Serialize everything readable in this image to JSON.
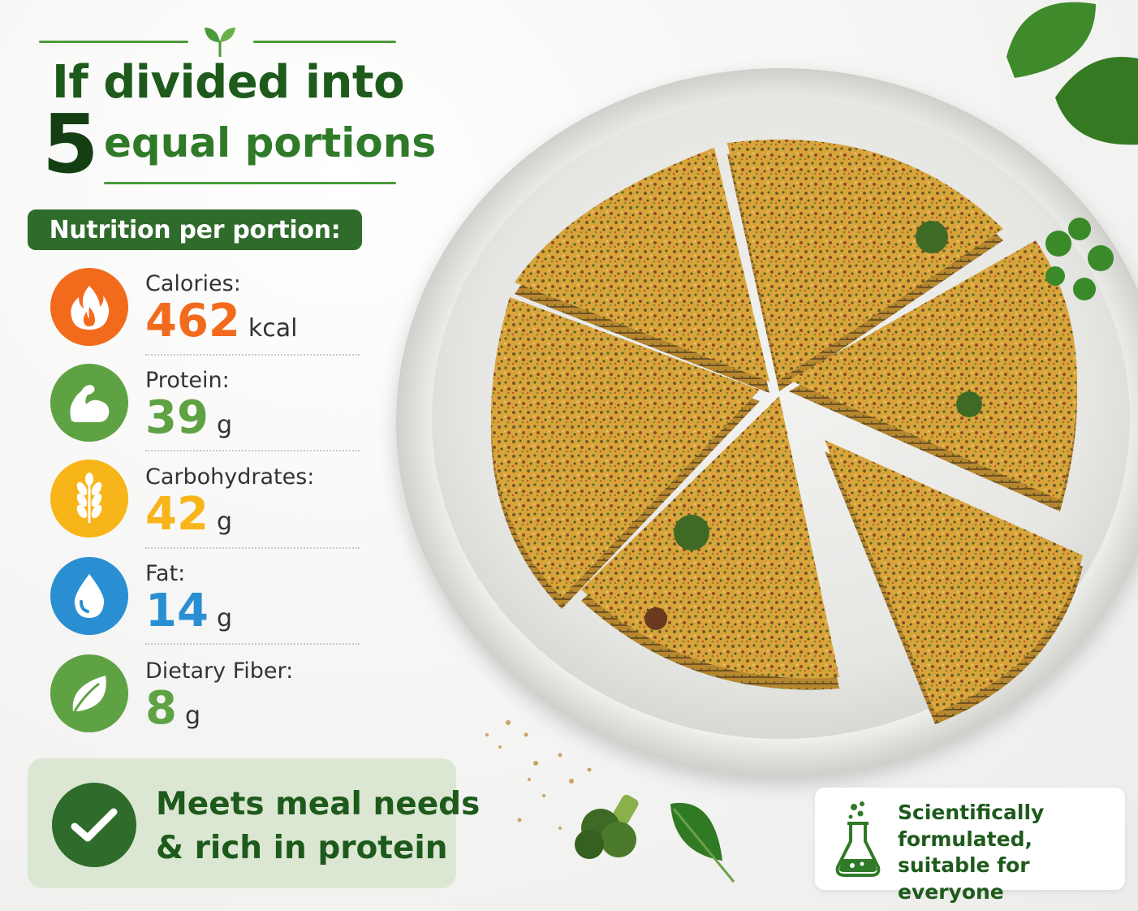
{
  "header": {
    "line1": "If divided into",
    "number": "5",
    "line2": "equal portions"
  },
  "section_label": "Nutrition per portion:",
  "nutrients": [
    {
      "label": "Calories:",
      "value": "462",
      "unit": "kcal",
      "color": "#f26b1d",
      "icon": "flame-icon"
    },
    {
      "label": "Protein:",
      "value": "39",
      "unit": "g",
      "color": "#5fa243",
      "icon": "flexed-arm-icon"
    },
    {
      "label": "Carbohydrates:",
      "value": "42",
      "unit": "g",
      "color": "#f7b519",
      "icon": "wheat-icon"
    },
    {
      "label": "Fat:",
      "value": "14",
      "unit": "g",
      "color": "#2a8fd2",
      "icon": "drop-icon"
    },
    {
      "label": "Dietary Fiber:",
      "value": "8",
      "unit": "g",
      "color": "#5fa243",
      "icon": "leaf-icon"
    }
  ],
  "meets": {
    "line1": "Meets meal needs",
    "line2": "& rich in protein"
  },
  "scientific": {
    "line1": "Scientifically",
    "line2": "formulated,",
    "line3": "suitable for everyone"
  },
  "image": {
    "subject": "crustless vegetable quiche on a white plate",
    "slices": 5
  }
}
